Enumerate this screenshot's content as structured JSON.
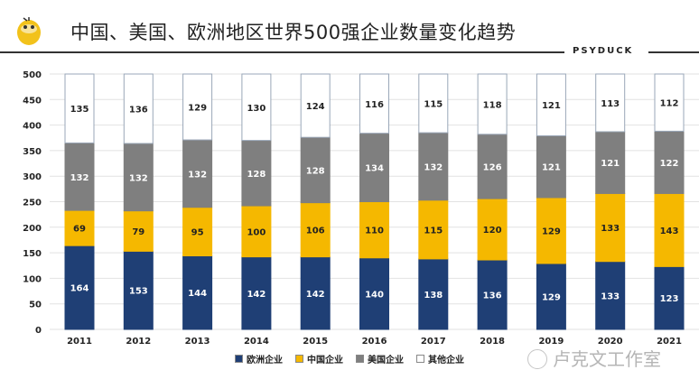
{
  "header": {
    "title": "中国、美国、欧洲地区世界500强企业数量变化趋势",
    "brand": "PSYDUCK"
  },
  "watermark": "卢克文工作室",
  "chart_data": {
    "type": "bar",
    "stacked": true,
    "title": "中国、美国、欧洲地区世界500强企业数量变化趋势",
    "categories": [
      "2011",
      "2012",
      "2013",
      "2014",
      "2015",
      "2016",
      "2017",
      "2018",
      "2019",
      "2020",
      "2021"
    ],
    "series": [
      {
        "name": "欧洲企业",
        "color": "#1f3f75",
        "values": [
          164,
          153,
          144,
          142,
          142,
          140,
          138,
          136,
          129,
          133,
          123
        ]
      },
      {
        "name": "中国企业",
        "color": "#f5b800",
        "values": [
          69,
          79,
          95,
          100,
          106,
          110,
          115,
          120,
          129,
          133,
          143
        ]
      },
      {
        "name": "美国企业",
        "color": "#7f7f7f",
        "values": [
          132,
          132,
          132,
          128,
          128,
          134,
          132,
          126,
          121,
          121,
          122
        ]
      },
      {
        "name": "其他企业",
        "color": "#ffffff",
        "values": [
          135,
          136,
          129,
          130,
          124,
          116,
          115,
          118,
          121,
          113,
          112
        ]
      }
    ],
    "ylim": [
      0,
      500
    ],
    "yticks": [
      0,
      50,
      100,
      150,
      200,
      250,
      300,
      350,
      400,
      450,
      500
    ],
    "grid": true,
    "legend": "bottom"
  }
}
